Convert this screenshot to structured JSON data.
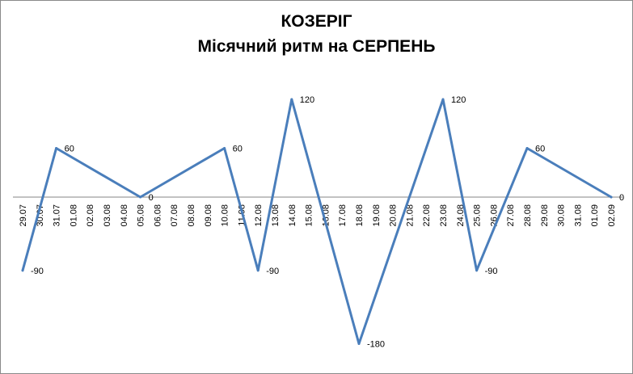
{
  "chart_data": {
    "type": "line",
    "title": "КОЗЕРІГ",
    "subtitle": "Місячний ритм на СЕРПЕНЬ",
    "xlabel": "",
    "ylabel": "",
    "ylim": [
      -180,
      120
    ],
    "grid": false,
    "legend": "none",
    "line_color": "#4A7EBB",
    "categories": [
      "29.07",
      "30.07",
      "31.07",
      "01.08",
      "02.08",
      "03.08",
      "04.08",
      "05.08",
      "06.08",
      "07.08",
      "08.08",
      "09.08",
      "10.08",
      "11.08",
      "12.08",
      "13.08",
      "14.08",
      "15.08",
      "16.08",
      "17.08",
      "18.08",
      "19.08",
      "20.08",
      "21.08",
      "22.08",
      "23.08",
      "24.08",
      "25.08",
      "26.08",
      "27.08",
      "28.08",
      "29.08",
      "30.08",
      "31.08",
      "01.09",
      "02.09"
    ],
    "series": [
      {
        "values": [
          -90,
          null,
          60,
          null,
          null,
          null,
          null,
          0,
          null,
          null,
          null,
          null,
          60,
          null,
          -90,
          null,
          120,
          null,
          null,
          null,
          -180,
          null,
          null,
          null,
          null,
          120,
          null,
          -90,
          null,
          null,
          60,
          null,
          null,
          null,
          null,
          0
        ],
        "data_labels": [
          "-90",
          null,
          "60",
          null,
          null,
          null,
          null,
          "0",
          null,
          null,
          null,
          null,
          "60",
          null,
          "-90",
          null,
          "120",
          null,
          null,
          null,
          "-180",
          null,
          null,
          null,
          null,
          "120",
          null,
          "-90",
          null,
          null,
          "60",
          null,
          null,
          null,
          null,
          "0"
        ]
      }
    ]
  }
}
